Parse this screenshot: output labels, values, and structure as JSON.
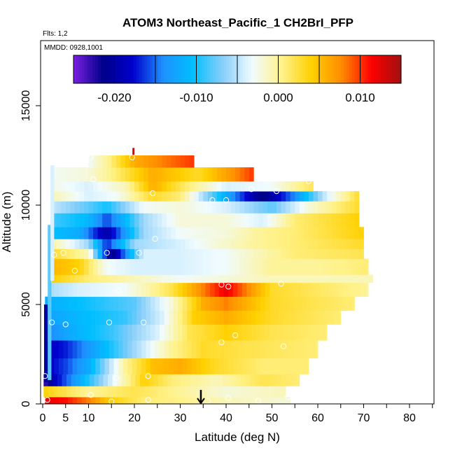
{
  "chart_data": {
    "type": "heatmap",
    "title": "ATOM3 Northeast_Pacific_1 CH2BrI_PFP",
    "flights_label": "Flts: 1,2",
    "dates_label": "MMDD: 0928,1001",
    "xlabel": "Latitude (deg N)",
    "ylabel": "Altitude (m)",
    "xlim": [
      -0.5,
      85
    ],
    "ylim": [
      0,
      18500
    ],
    "x_ticks": [
      0,
      5,
      10,
      20,
      30,
      40,
      50,
      60,
      70,
      80
    ],
    "x_tick_labels": [
      "0",
      "5",
      "10",
      "20",
      "30",
      "40",
      "50",
      "60",
      "70",
      "80"
    ],
    "x_minor_ticks": [
      15,
      25,
      35,
      45,
      55,
      65,
      75,
      85
    ],
    "y_ticks": [
      0,
      5000,
      10000,
      15000
    ],
    "y_tick_labels": [
      "0",
      "5000",
      "10000",
      "15000"
    ],
    "colorbar": {
      "range": [
        -0.025,
        0.015
      ],
      "ticks": [
        -0.02,
        -0.01,
        0.0,
        0.01
      ],
      "tick_labels": [
        "-0.020",
        "-0.010",
        "0.000",
        "0.010"
      ],
      "colors": [
        "#7a1fe0",
        "#00008b",
        "#0000cd",
        "#1e90ff",
        "#00bfff",
        "#87cefa",
        "#f0fbff",
        "#fff28a",
        "#ffd000",
        "#ff8c00",
        "#ff0000",
        "#a01010"
      ]
    },
    "markers": {
      "down_arrow_latitude": 34.5,
      "red_tick_latitude": 19.8,
      "red_tick_altitude": 12700
    },
    "layers": [
      {
        "ymin": 0,
        "ymax": 350,
        "xmin": 0.5,
        "xmax": 54,
        "stops": [
          [
            0,
            0.012
          ],
          [
            5,
            0.011
          ],
          [
            10,
            0.008
          ],
          [
            15,
            0.004
          ],
          [
            22,
            0.001
          ],
          [
            30,
            0.0005
          ],
          [
            40,
            -0.001
          ],
          [
            54,
            -0.002
          ]
        ]
      },
      {
        "ymin": 350,
        "ymax": 900,
        "xmin": 0.2,
        "xmax": 53,
        "stops": [
          [
            0,
            0.004
          ],
          [
            5,
            0.002
          ],
          [
            10,
            0.0
          ],
          [
            20,
            0.002
          ],
          [
            30,
            0.0
          ],
          [
            40,
            -0.002
          ],
          [
            53,
            -0.001
          ]
        ]
      },
      {
        "ymin": 900,
        "ymax": 1500,
        "xmin": 0.2,
        "xmax": 56,
        "stops": [
          [
            0,
            -0.024
          ],
          [
            3,
            -0.018
          ],
          [
            8,
            -0.012
          ],
          [
            15,
            -0.004
          ],
          [
            22,
            0.004
          ],
          [
            28,
            0.001
          ],
          [
            38,
            -0.001
          ],
          [
            48,
            0.002
          ],
          [
            56,
            0.001
          ]
        ]
      },
      {
        "ymin": 1500,
        "ymax": 2300,
        "xmin": 0.5,
        "xmax": 58,
        "stops": [
          [
            0,
            -0.019
          ],
          [
            5,
            -0.016
          ],
          [
            10,
            -0.012
          ],
          [
            18,
            0.0
          ],
          [
            24,
            0.005
          ],
          [
            30,
            0.006
          ],
          [
            38,
            0.003
          ],
          [
            48,
            0.001
          ],
          [
            58,
            0.001
          ]
        ]
      },
      {
        "ymin": 2300,
        "ymax": 3200,
        "xmin": 0.5,
        "xmax": 60,
        "stops": [
          [
            0,
            -0.019
          ],
          [
            5,
            -0.017
          ],
          [
            12,
            -0.012
          ],
          [
            20,
            -0.006
          ],
          [
            28,
            0.0
          ],
          [
            35,
            0.003
          ],
          [
            45,
            0.002
          ],
          [
            60,
            0.001
          ]
        ]
      },
      {
        "ymin": 3200,
        "ymax": 4000,
        "xmin": 0.5,
        "xmax": 62,
        "stops": [
          [
            0,
            -0.015
          ],
          [
            6,
            -0.012
          ],
          [
            15,
            -0.009
          ],
          [
            25,
            -0.004
          ],
          [
            32,
            0.002
          ],
          [
            40,
            0.004
          ],
          [
            50,
            0.002
          ],
          [
            62,
            0.001
          ]
        ]
      },
      {
        "ymin": 4000,
        "ymax": 4700,
        "xmin": 0.5,
        "xmax": 65,
        "stops": [
          [
            0,
            -0.013
          ],
          [
            8,
            -0.011
          ],
          [
            18,
            -0.009
          ],
          [
            26,
            -0.004
          ],
          [
            33,
            0.004
          ],
          [
            40,
            0.006
          ],
          [
            50,
            0.003
          ],
          [
            65,
            0.001
          ]
        ]
      },
      {
        "ymin": 4700,
        "ymax": 5400,
        "xmin": 0.5,
        "xmax": 68,
        "stops": [
          [
            0,
            -0.012
          ],
          [
            10,
            -0.01
          ],
          [
            20,
            -0.008
          ],
          [
            28,
            -0.002
          ],
          [
            35,
            0.006
          ],
          [
            40,
            0.008
          ],
          [
            50,
            0.003
          ],
          [
            68,
            0.001
          ]
        ]
      },
      {
        "ymin": 5400,
        "ymax": 6100,
        "xmin": 1.5,
        "xmax": 71,
        "stops": [
          [
            0,
            -0.006
          ],
          [
            8,
            -0.004
          ],
          [
            18,
            -0.003
          ],
          [
            28,
            0.002
          ],
          [
            35,
            0.008
          ],
          [
            40,
            0.012
          ],
          [
            50,
            0.003
          ],
          [
            71,
            0.0
          ]
        ]
      },
      {
        "ymin": 6100,
        "ymax": 6500,
        "xmin": 2,
        "xmax": 72,
        "stops": [
          [
            0,
            0.005
          ],
          [
            10,
            0.001
          ],
          [
            20,
            -0.001
          ],
          [
            30,
            -0.003
          ],
          [
            40,
            -0.002
          ],
          [
            50,
            -0.001
          ],
          [
            72,
            -0.001
          ]
        ]
      },
      {
        "ymin": 6500,
        "ymax": 7300,
        "xmin": 2,
        "xmax": 71,
        "stops": [
          [
            0,
            0.006
          ],
          [
            8,
            0.004
          ],
          [
            14,
            -0.003
          ],
          [
            20,
            -0.004
          ],
          [
            30,
            -0.004
          ],
          [
            40,
            -0.003
          ],
          [
            50,
            0.0
          ],
          [
            60,
            0.0
          ],
          [
            71,
            0.001
          ]
        ]
      },
      {
        "ymin": 7300,
        "ymax": 7800,
        "xmin": 2,
        "xmax": 70,
        "stops": [
          [
            0,
            0.004
          ],
          [
            10,
            -0.001
          ],
          [
            15,
            -0.022
          ],
          [
            22,
            -0.004
          ],
          [
            30,
            -0.004
          ],
          [
            40,
            -0.003
          ],
          [
            47,
            -0.001
          ],
          [
            55,
            0.001
          ],
          [
            70,
            0.002
          ]
        ]
      },
      {
        "ymin": 7800,
        "ymax": 8300,
        "xmin": 2,
        "xmax": 70,
        "stops": [
          [
            0,
            0.001
          ],
          [
            10,
            -0.006
          ],
          [
            14,
            -0.017
          ],
          [
            20,
            -0.006
          ],
          [
            30,
            -0.004
          ],
          [
            38,
            -0.002
          ],
          [
            47,
            0.0
          ],
          [
            55,
            0.001
          ],
          [
            70,
            0.003
          ]
        ]
      },
      {
        "ymin": 8300,
        "ymax": 8900,
        "xmin": 2,
        "xmax": 70,
        "stops": [
          [
            0,
            -0.01
          ],
          [
            8,
            -0.012
          ],
          [
            14,
            -0.02
          ],
          [
            22,
            -0.006
          ],
          [
            30,
            -0.003
          ],
          [
            40,
            -0.002
          ],
          [
            47,
            0.0
          ],
          [
            55,
            0.001
          ],
          [
            70,
            0.004
          ]
        ]
      },
      {
        "ymin": 8900,
        "ymax": 9600,
        "xmin": 2,
        "xmax": 69,
        "stops": [
          [
            0,
            -0.008
          ],
          [
            10,
            -0.011
          ],
          [
            14,
            -0.016
          ],
          [
            22,
            -0.006
          ],
          [
            30,
            -0.002
          ],
          [
            40,
            -0.002
          ],
          [
            48,
            -0.004
          ],
          [
            55,
            0.001
          ],
          [
            69,
            0.004
          ]
        ]
      },
      {
        "ymin": 9600,
        "ymax": 10200,
        "xmin": 2,
        "xmax": 69,
        "stops": [
          [
            0,
            -0.004
          ],
          [
            10,
            -0.008
          ],
          [
            14,
            -0.01
          ],
          [
            22,
            -0.003
          ],
          [
            30,
            -0.002
          ],
          [
            40,
            -0.004
          ],
          [
            50,
            -0.008
          ],
          [
            58,
            -0.002
          ],
          [
            69,
            0.003
          ]
        ]
      },
      {
        "ymin": 10200,
        "ymax": 10700,
        "xmin": 2,
        "xmax": 69,
        "stops": [
          [
            0,
            0.0
          ],
          [
            10,
            -0.004
          ],
          [
            16,
            -0.003
          ],
          [
            24,
            0.003
          ],
          [
            30,
            0.001
          ],
          [
            40,
            -0.012
          ],
          [
            48,
            -0.022
          ],
          [
            55,
            -0.014
          ],
          [
            62,
            -0.004
          ],
          [
            69,
            0.003
          ]
        ]
      },
      {
        "ymin": 10700,
        "ymax": 11200,
        "xmin": 2,
        "xmax": 59,
        "stops": [
          [
            0,
            -0.002
          ],
          [
            10,
            -0.004
          ],
          [
            18,
            -0.001
          ],
          [
            24,
            0.006
          ],
          [
            30,
            0.002
          ],
          [
            40,
            -0.004
          ],
          [
            50,
            -0.003
          ],
          [
            59,
            0.002
          ]
        ]
      },
      {
        "ymin": 11200,
        "ymax": 11900,
        "xmin": 2,
        "xmax": 46,
        "stops": [
          [
            0,
            -0.003
          ],
          [
            10,
            -0.002
          ],
          [
            16,
            0.001
          ],
          [
            24,
            0.006
          ],
          [
            34,
            0.003
          ],
          [
            46,
            0.01
          ]
        ]
      },
      {
        "ymin": 11900,
        "ymax": 12500,
        "xmin": 10,
        "xmax": 33,
        "stops": [
          [
            10,
            -0.003
          ],
          [
            14,
            0.0
          ],
          [
            20,
            0.006
          ],
          [
            26,
            0.008
          ],
          [
            33,
            0.01
          ]
        ]
      }
    ],
    "side_strips": [
      {
        "xmin": 0.3,
        "xmax": 1.1,
        "ymin": 1100,
        "ymax": 5000,
        "value": -0.02
      },
      {
        "xmin": 1.1,
        "xmax": 1.9,
        "ymin": 1200,
        "ymax": 9000,
        "value": -0.008
      },
      {
        "xmin": 1.7,
        "xmax": 2.5,
        "ymin": 6200,
        "ymax": 12000,
        "value": -0.004
      }
    ],
    "sample_points": [
      {
        "lat": 1.0,
        "alt": 200
      },
      {
        "lat": 10.5,
        "alt": 450
      },
      {
        "lat": 15.0,
        "alt": 120
      },
      {
        "lat": 23.0,
        "alt": 200
      },
      {
        "lat": 36.0,
        "alt": 150
      },
      {
        "lat": 40.5,
        "alt": 300
      },
      {
        "lat": 47.0,
        "alt": 150
      },
      {
        "lat": 53.5,
        "alt": 350
      },
      {
        "lat": 0.5,
        "alt": 1400
      },
      {
        "lat": 16.0,
        "alt": 1300
      },
      {
        "lat": 23.0,
        "alt": 1400
      },
      {
        "lat": 39.0,
        "alt": 3100
      },
      {
        "lat": 42.0,
        "alt": 3450
      },
      {
        "lat": 52.5,
        "alt": 2900
      },
      {
        "lat": 2.0,
        "alt": 4100
      },
      {
        "lat": 5.0,
        "alt": 4000
      },
      {
        "lat": 14.5,
        "alt": 4100
      },
      {
        "lat": 22.0,
        "alt": 4100
      },
      {
        "lat": 16.5,
        "alt": 5700
      },
      {
        "lat": 39.0,
        "alt": 6000
      },
      {
        "lat": 40.5,
        "alt": 5900
      },
      {
        "lat": 52.0,
        "alt": 6050
      },
      {
        "lat": 7.0,
        "alt": 6700
      },
      {
        "lat": 2.5,
        "alt": 7500
      },
      {
        "lat": 4.5,
        "alt": 7600
      },
      {
        "lat": 14.0,
        "alt": 7600
      },
      {
        "lat": 21.0,
        "alt": 7600
      },
      {
        "lat": 24.5,
        "alt": 8300
      },
      {
        "lat": 24.0,
        "alt": 10600
      },
      {
        "lat": 37.0,
        "alt": 10250
      },
      {
        "lat": 40.0,
        "alt": 10250
      },
      {
        "lat": 45.5,
        "alt": 10800
      },
      {
        "lat": 51.0,
        "alt": 10700
      },
      {
        "lat": 58.0,
        "alt": 11200
      },
      {
        "lat": 69.0,
        "alt": 10850
      },
      {
        "lat": 11.0,
        "alt": 11300
      },
      {
        "lat": 10.5,
        "alt": 12400
      },
      {
        "lat": 19.5,
        "alt": 12400
      }
    ]
  }
}
